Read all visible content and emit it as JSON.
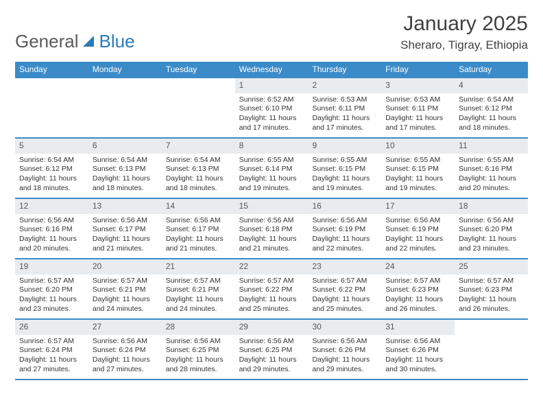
{
  "brand": {
    "name_a": "General",
    "name_b": "Blue"
  },
  "title": {
    "month": "January 2025",
    "location": "Sheraro, Tigray, Ethiopia"
  },
  "colors": {
    "header_bg": "#3b8bc9",
    "rule": "#3b8bc9",
    "daynum_bg": "#e9ecef"
  },
  "dow": [
    "Sunday",
    "Monday",
    "Tuesday",
    "Wednesday",
    "Thursday",
    "Friday",
    "Saturday"
  ],
  "weeks": [
    [
      {
        "n": "",
        "empty": true
      },
      {
        "n": "",
        "empty": true
      },
      {
        "n": "",
        "empty": true
      },
      {
        "n": "1",
        "sr": "6:52 AM",
        "ss": "6:10 PM",
        "dl": "11 hours and 17 minutes."
      },
      {
        "n": "2",
        "sr": "6:53 AM",
        "ss": "6:11 PM",
        "dl": "11 hours and 17 minutes."
      },
      {
        "n": "3",
        "sr": "6:53 AM",
        "ss": "6:11 PM",
        "dl": "11 hours and 17 minutes."
      },
      {
        "n": "4",
        "sr": "6:54 AM",
        "ss": "6:12 PM",
        "dl": "11 hours and 18 minutes."
      }
    ],
    [
      {
        "n": "5",
        "sr": "6:54 AM",
        "ss": "6:12 PM",
        "dl": "11 hours and 18 minutes."
      },
      {
        "n": "6",
        "sr": "6:54 AM",
        "ss": "6:13 PM",
        "dl": "11 hours and 18 minutes."
      },
      {
        "n": "7",
        "sr": "6:54 AM",
        "ss": "6:13 PM",
        "dl": "11 hours and 18 minutes."
      },
      {
        "n": "8",
        "sr": "6:55 AM",
        "ss": "6:14 PM",
        "dl": "11 hours and 19 minutes."
      },
      {
        "n": "9",
        "sr": "6:55 AM",
        "ss": "6:15 PM",
        "dl": "11 hours and 19 minutes."
      },
      {
        "n": "10",
        "sr": "6:55 AM",
        "ss": "6:15 PM",
        "dl": "11 hours and 19 minutes."
      },
      {
        "n": "11",
        "sr": "6:55 AM",
        "ss": "6:16 PM",
        "dl": "11 hours and 20 minutes."
      }
    ],
    [
      {
        "n": "12",
        "sr": "6:56 AM",
        "ss": "6:16 PM",
        "dl": "11 hours and 20 minutes."
      },
      {
        "n": "13",
        "sr": "6:56 AM",
        "ss": "6:17 PM",
        "dl": "11 hours and 21 minutes."
      },
      {
        "n": "14",
        "sr": "6:56 AM",
        "ss": "6:17 PM",
        "dl": "11 hours and 21 minutes."
      },
      {
        "n": "15",
        "sr": "6:56 AM",
        "ss": "6:18 PM",
        "dl": "11 hours and 21 minutes."
      },
      {
        "n": "16",
        "sr": "6:56 AM",
        "ss": "6:19 PM",
        "dl": "11 hours and 22 minutes."
      },
      {
        "n": "17",
        "sr": "6:56 AM",
        "ss": "6:19 PM",
        "dl": "11 hours and 22 minutes."
      },
      {
        "n": "18",
        "sr": "6:56 AM",
        "ss": "6:20 PM",
        "dl": "11 hours and 23 minutes."
      }
    ],
    [
      {
        "n": "19",
        "sr": "6:57 AM",
        "ss": "6:20 PM",
        "dl": "11 hours and 23 minutes."
      },
      {
        "n": "20",
        "sr": "6:57 AM",
        "ss": "6:21 PM",
        "dl": "11 hours and 24 minutes."
      },
      {
        "n": "21",
        "sr": "6:57 AM",
        "ss": "6:21 PM",
        "dl": "11 hours and 24 minutes."
      },
      {
        "n": "22",
        "sr": "6:57 AM",
        "ss": "6:22 PM",
        "dl": "11 hours and 25 minutes."
      },
      {
        "n": "23",
        "sr": "6:57 AM",
        "ss": "6:22 PM",
        "dl": "11 hours and 25 minutes."
      },
      {
        "n": "24",
        "sr": "6:57 AM",
        "ss": "6:23 PM",
        "dl": "11 hours and 26 minutes."
      },
      {
        "n": "25",
        "sr": "6:57 AM",
        "ss": "6:23 PM",
        "dl": "11 hours and 26 minutes."
      }
    ],
    [
      {
        "n": "26",
        "sr": "6:57 AM",
        "ss": "6:24 PM",
        "dl": "11 hours and 27 minutes."
      },
      {
        "n": "27",
        "sr": "6:56 AM",
        "ss": "6:24 PM",
        "dl": "11 hours and 27 minutes."
      },
      {
        "n": "28",
        "sr": "6:56 AM",
        "ss": "6:25 PM",
        "dl": "11 hours and 28 minutes."
      },
      {
        "n": "29",
        "sr": "6:56 AM",
        "ss": "6:25 PM",
        "dl": "11 hours and 29 minutes."
      },
      {
        "n": "30",
        "sr": "6:56 AM",
        "ss": "6:26 PM",
        "dl": "11 hours and 29 minutes."
      },
      {
        "n": "31",
        "sr": "6:56 AM",
        "ss": "6:26 PM",
        "dl": "11 hours and 30 minutes."
      },
      {
        "n": "",
        "empty": true
      }
    ]
  ],
  "labels": {
    "sunrise": "Sunrise:",
    "sunset": "Sunset:",
    "daylight": "Daylight:"
  }
}
